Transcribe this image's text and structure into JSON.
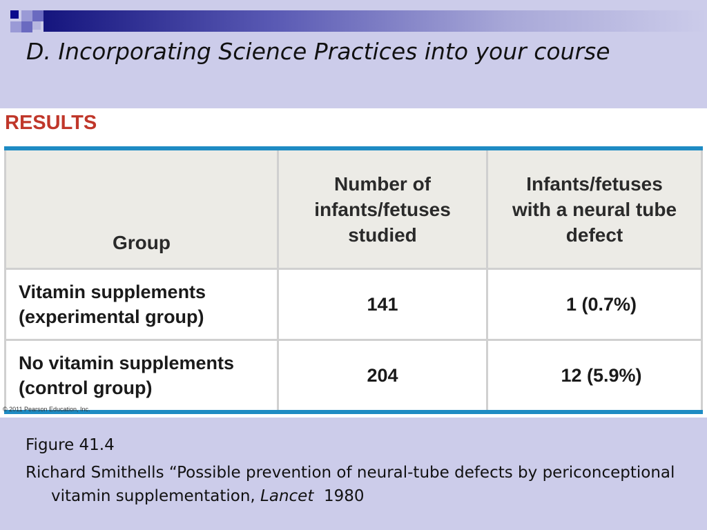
{
  "slide": {
    "title": "D.  Incorporating Science Practices into your course"
  },
  "figure": {
    "results_label": "RESULTS",
    "table": {
      "headers": [
        "Group",
        "Number of infants/fetuses studied",
        "Infants/fetuses with a neural tube defect"
      ],
      "rows": [
        {
          "group_line1": "Vitamin supplements",
          "group_line2": "(experimental group)",
          "studied": "141",
          "defects": "1 (0.7%)"
        },
        {
          "group_line1": "No vitamin supplements",
          "group_line2": "(control group)",
          "studied": "204",
          "defects": "12 (5.9%)"
        }
      ]
    },
    "copyright": "© 2011 Pearson Education, Inc."
  },
  "caption": {
    "figure_ref": "Figure 41.4",
    "citation_prefix": "Richard Smithells “Possible prevention of neural-tube defects by periconceptional vitamin supplementation,",
    "journal": "Lancet",
    "year": "1980"
  },
  "colors": {
    "slide_background": "#ccccea",
    "results_red": "#c0372a",
    "table_rule_blue": "#1e8bc3",
    "header_fill": "#ecebe6"
  }
}
